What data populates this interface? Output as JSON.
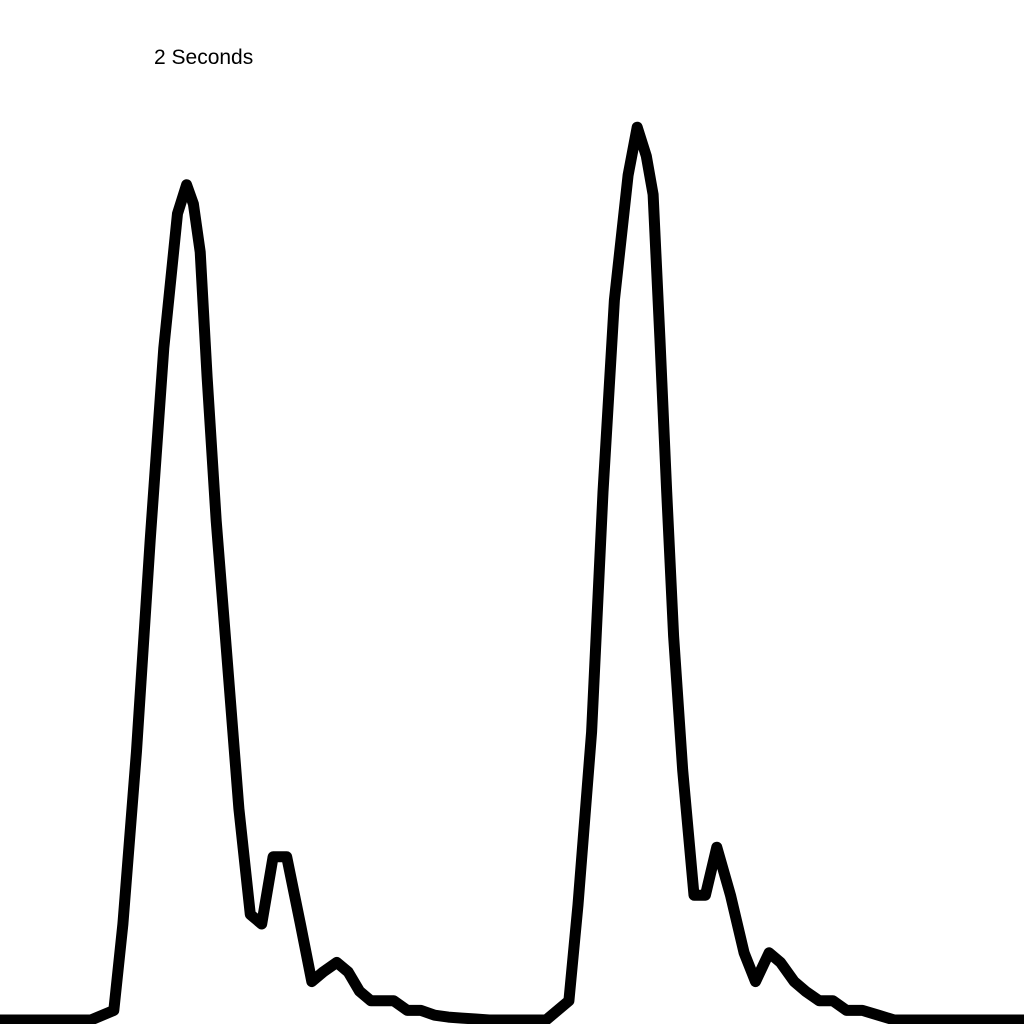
{
  "annotation": {
    "label": "2 Seconds"
  },
  "colors": {
    "background": "#ffffff",
    "trace": "#000000"
  },
  "chart_data": {
    "type": "line",
    "title": "",
    "xlabel": "",
    "ylabel": "",
    "grid": false,
    "legend": "none",
    "xlim": [
      0,
      4.5
    ],
    "ylim": [
      0,
      1
    ],
    "series": [
      {
        "x": [
          0,
          0.4,
          0.5,
          0.54,
          0.6,
          0.66,
          0.72,
          0.78,
          0.82,
          0.85,
          0.88,
          0.91,
          0.95,
          1.0,
          1.05,
          1.1,
          1.15,
          1.2,
          1.26,
          1.32,
          1.37,
          1.42,
          1.48,
          1.53,
          1.58,
          1.63,
          1.68,
          1.73,
          1.79,
          1.85,
          1.91,
          1.97,
          2.03,
          2.09,
          2.15,
          2.2,
          2.3,
          2.4,
          2.5,
          2.54,
          2.6,
          2.65,
          2.7,
          2.76,
          2.8,
          2.84,
          2.87,
          2.9,
          2.93,
          2.96,
          3.0,
          3.05,
          3.1,
          3.15,
          3.21,
          3.27,
          3.32,
          3.38,
          3.43,
          3.49,
          3.54,
          3.6,
          3.66,
          3.72,
          3.79,
          3.86,
          3.93,
          4.0,
          4.1,
          4.2,
          4.3,
          4.5
        ],
        "y": [
          0.0,
          0.0,
          0.01,
          0.1,
          0.28,
          0.5,
          0.7,
          0.84,
          0.87,
          0.85,
          0.8,
          0.67,
          0.52,
          0.37,
          0.22,
          0.11,
          0.1,
          0.17,
          0.17,
          0.1,
          0.04,
          0.05,
          0.06,
          0.05,
          0.03,
          0.02,
          0.02,
          0.02,
          0.01,
          0.01,
          0.005,
          0.003,
          0.002,
          0.001,
          0.0,
          0.0,
          0.0,
          0.0,
          0.02,
          0.12,
          0.3,
          0.55,
          0.75,
          0.88,
          0.93,
          0.9,
          0.86,
          0.71,
          0.55,
          0.4,
          0.26,
          0.13,
          0.13,
          0.18,
          0.13,
          0.07,
          0.04,
          0.07,
          0.06,
          0.04,
          0.03,
          0.02,
          0.02,
          0.01,
          0.01,
          0.005,
          0.0,
          0.0,
          0.0,
          0.0,
          0.0,
          0.0
        ]
      }
    ]
  }
}
